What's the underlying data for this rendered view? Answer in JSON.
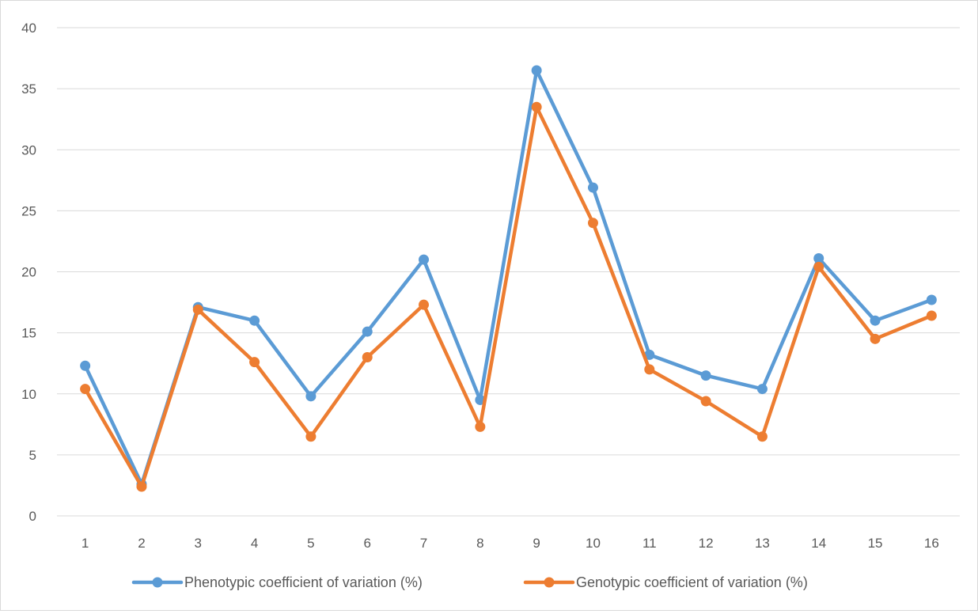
{
  "chart_data": {
    "type": "line",
    "categories": [
      "1",
      "2",
      "3",
      "4",
      "5",
      "6",
      "7",
      "8",
      "9",
      "10",
      "11",
      "12",
      "13",
      "14",
      "15",
      "16"
    ],
    "series": [
      {
        "name": "Phenotypic coefficient of variation (%)",
        "color": "#5b9bd5",
        "values": [
          12.3,
          2.6,
          17.1,
          16.0,
          9.8,
          15.1,
          21.0,
          9.5,
          36.5,
          26.9,
          13.2,
          11.5,
          10.4,
          21.1,
          16.0,
          17.7
        ]
      },
      {
        "name": "Genotypic coefficient of variation (%)",
        "color": "#ed7d31",
        "values": [
          10.4,
          2.4,
          16.9,
          12.6,
          6.5,
          13.0,
          17.3,
          7.3,
          33.5,
          24.0,
          12.0,
          9.4,
          6.5,
          20.4,
          14.5,
          16.4
        ]
      }
    ],
    "y_ticks": [
      "0",
      "5",
      "10",
      "15",
      "20",
      "25",
      "30",
      "35",
      "40"
    ],
    "ylim": [
      0,
      40
    ],
    "grid": true,
    "legend_position": "bottom",
    "gridline_color": "#d9d9d9"
  }
}
